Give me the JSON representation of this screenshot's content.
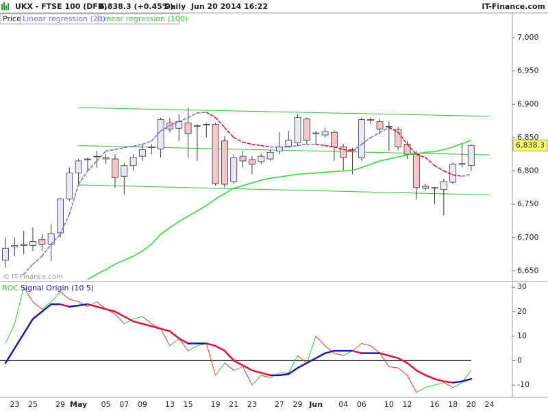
{
  "header": {
    "symbol": "UKX - FTSE 100 (DFB)",
    "quote": "6,838.3 (+0.45%)",
    "period": "Daily  Jun 20 2014 16:22",
    "brand": "IT-Finance.com"
  },
  "chart_data": [
    {
      "type": "candlestick",
      "price_label": "Price",
      "watermark": "© IT-Finance.com",
      "last_label": "6,838.3",
      "up_color": "#e8e8f6",
      "down_color": "#f4c6c6",
      "open": [
        6666,
        6686,
        6688,
        6688,
        6697,
        6690,
        6707,
        6758,
        6797,
        6818,
        6822,
        6820,
        6818,
        6792,
        6808,
        6822,
        6835,
        6833,
        6872,
        6864,
        6872,
        6868,
        6870,
        6870,
        6845,
        6784,
        6822,
        6817,
        6814,
        6818,
        6830,
        6837,
        6842,
        6878,
        6856,
        6854,
        6858,
        6836,
        6832,
        6820,
        6876,
        6874,
        6867,
        6862,
        6840,
        6825,
        6777,
        6775,
        6772,
        6783,
        6810,
        6808,
        null,
        null
      ],
      "high": [
        6700,
        6700,
        6710,
        6715,
        6705,
        6720,
        6760,
        6805,
        6818,
        6820,
        6830,
        6825,
        6825,
        6812,
        6825,
        6840,
        6840,
        6880,
        6880,
        6885,
        6895,
        6870,
        6872,
        6872,
        6852,
        6825,
        6830,
        6822,
        6826,
        6832,
        6858,
        6860,
        6885,
        6880,
        6860,
        6865,
        6860,
        6840,
        6835,
        6880,
        6880,
        6878,
        6875,
        6866,
        6845,
        6830,
        6780,
        6776,
        6788,
        6813,
        6842,
        6840,
        null,
        null
      ],
      "low": [
        6655,
        6672,
        6675,
        6680,
        6680,
        6665,
        6700,
        6755,
        6780,
        6800,
        6805,
        6810,
        6775,
        6765,
        6800,
        6815,
        6825,
        6820,
        6858,
        6845,
        6820,
        6815,
        6850,
        6778,
        6775,
        6780,
        6805,
        6795,
        6810,
        6815,
        6825,
        6835,
        6838,
        6840,
        6840,
        6850,
        6815,
        6800,
        6795,
        6815,
        6870,
        6855,
        6830,
        6832,
        6818,
        6757,
        6770,
        6750,
        6733,
        6780,
        6805,
        6800,
        null,
        null
      ],
      "close": [
        6684,
        6688,
        6690,
        6694,
        6690,
        6706,
        6758,
        6797,
        6815,
        6817,
        6822,
        6818,
        6790,
        6808,
        6820,
        6832,
        6836,
        6877,
        6863,
        6874,
        6856,
        6867,
        6870,
        6781,
        6780,
        6820,
        6815,
        6810,
        6822,
        6828,
        6836,
        6846,
        6880,
        6846,
        6857,
        6859,
        6836,
        6820,
        6832,
        6877,
        6877,
        6863,
        6867,
        6836,
        6825,
        6775,
        6774,
        6774,
        6784,
        6810,
        6811,
        6838.3,
        null,
        null
      ],
      "series": [
        {
          "name": "Linear regression (20)",
          "color": "#7272e8",
          "down_color": "#e0103a",
          "dash": true,
          "values": [
            null,
            null,
            6645,
            6660,
            6672,
            6690,
            6705,
            6735,
            6780,
            6800,
            6815,
            6830,
            6832,
            6835,
            6837,
            6840,
            6845,
            6860,
            6868,
            6874,
            6880,
            6887,
            6888,
            6880,
            6865,
            6850,
            6843,
            6840,
            6838,
            6836,
            6836,
            6836,
            6838,
            6840,
            6840,
            6838,
            6836,
            6832,
            6830,
            6840,
            6850,
            6858,
            6865,
            6858,
            6840,
            6825,
            6820,
            6808,
            6800,
            6794,
            6792,
            6795,
            null,
            null
          ]
        },
        {
          "name": "Linear regression (100)",
          "color": "#33dd33",
          "down_color": "#33dd33",
          "dash": false,
          "values": [
            null,
            null,
            null,
            null,
            null,
            null,
            null,
            null,
            null,
            6637,
            6645,
            6652,
            6660,
            6666,
            6672,
            6680,
            6690,
            6705,
            6715,
            6724,
            6732,
            6740,
            6748,
            6758,
            6766,
            6774,
            6778,
            6782,
            6786,
            6789,
            6791,
            6793,
            6795,
            6796,
            6797,
            6798,
            6799,
            6800,
            6801,
            6805,
            6810,
            6815,
            6818,
            6821,
            6824,
            6826,
            6828,
            6829,
            6832,
            6836,
            6841,
            6846,
            null,
            null
          ]
        }
      ],
      "trend_lines": [
        {
          "color": "#33bb33",
          "x": [
            8,
            53
          ],
          "values": [
            6895,
            6882
          ]
        },
        {
          "color": "#33bb33",
          "x": [
            8,
            53
          ],
          "values": [
            6838,
            6824
          ]
        },
        {
          "color": "#33bb33",
          "x": [
            8,
            53
          ],
          "values": [
            6779,
            6764
          ]
        }
      ],
      "ylim": [
        6635,
        7036
      ],
      "yticks": [
        {
          "value": 6650,
          "label": "6,650"
        },
        {
          "value": 6700,
          "label": "6,700"
        },
        {
          "value": 6750,
          "label": "6,750"
        },
        {
          "value": 6800,
          "label": "6,800"
        },
        {
          "value": 6850,
          "label": "6,850"
        },
        {
          "value": 6900,
          "label": "6,900"
        },
        {
          "value": 6950,
          "label": "6,950"
        },
        {
          "value": 7000,
          "label": "7,000"
        }
      ],
      "grid": false
    },
    {
      "type": "line",
      "zero_line": true,
      "categories": [
        null,
        "23",
        null,
        "25",
        null,
        null,
        "29",
        null,
        "May",
        null,
        null,
        "05",
        null,
        "07",
        null,
        "09",
        null,
        null,
        "13",
        null,
        "15",
        null,
        null,
        "19",
        null,
        "21",
        null,
        "23",
        null,
        null,
        "27",
        null,
        "29",
        null,
        "Jun",
        null,
        null,
        "04",
        null,
        "06",
        null,
        null,
        "10",
        null,
        "12",
        null,
        null,
        "16",
        null,
        "18",
        null,
        "20",
        null,
        "24"
      ],
      "series": [
        {
          "name": "ROC",
          "color": "#33cc33",
          "down_color": "#ff3030",
          "width": 1,
          "values": [
            7,
            15,
            30,
            24,
            21,
            24,
            28,
            25,
            24,
            22,
            24,
            21,
            19,
            15,
            17,
            18,
            15,
            13,
            6,
            9,
            4,
            6,
            7,
            -6,
            -1,
            -4,
            -2.5,
            -10,
            -6,
            -7,
            -5,
            -5,
            2,
            -1,
            10,
            6,
            3,
            2,
            4,
            7,
            6,
            3,
            -2.5,
            -3,
            -6,
            -13,
            -11,
            -10,
            -9,
            -11,
            -9,
            -4,
            null,
            null
          ]
        },
        {
          "name": "Signal Origin (10 5)",
          "color": "#1a1ab0",
          "down_color": "#e0103a",
          "width": 2.5,
          "values": [
            -1,
            5,
            11,
            17,
            20,
            23,
            23,
            22,
            22.5,
            23,
            22,
            21,
            20,
            18,
            16,
            15,
            14,
            13,
            12,
            9,
            7,
            7,
            7,
            6,
            4,
            0,
            -2,
            -4,
            -5,
            -6,
            -6,
            -5.5,
            -3,
            -1,
            1,
            3,
            4,
            4,
            4,
            3,
            3,
            3,
            2,
            1,
            -1,
            -4,
            -6,
            -7.5,
            -8.5,
            -9,
            -8.5,
            -7.5,
            null,
            null
          ]
        }
      ],
      "ylim": [
        -15,
        32
      ],
      "yticks": [
        -10,
        0,
        10,
        20,
        30
      ],
      "grid": false
    }
  ]
}
